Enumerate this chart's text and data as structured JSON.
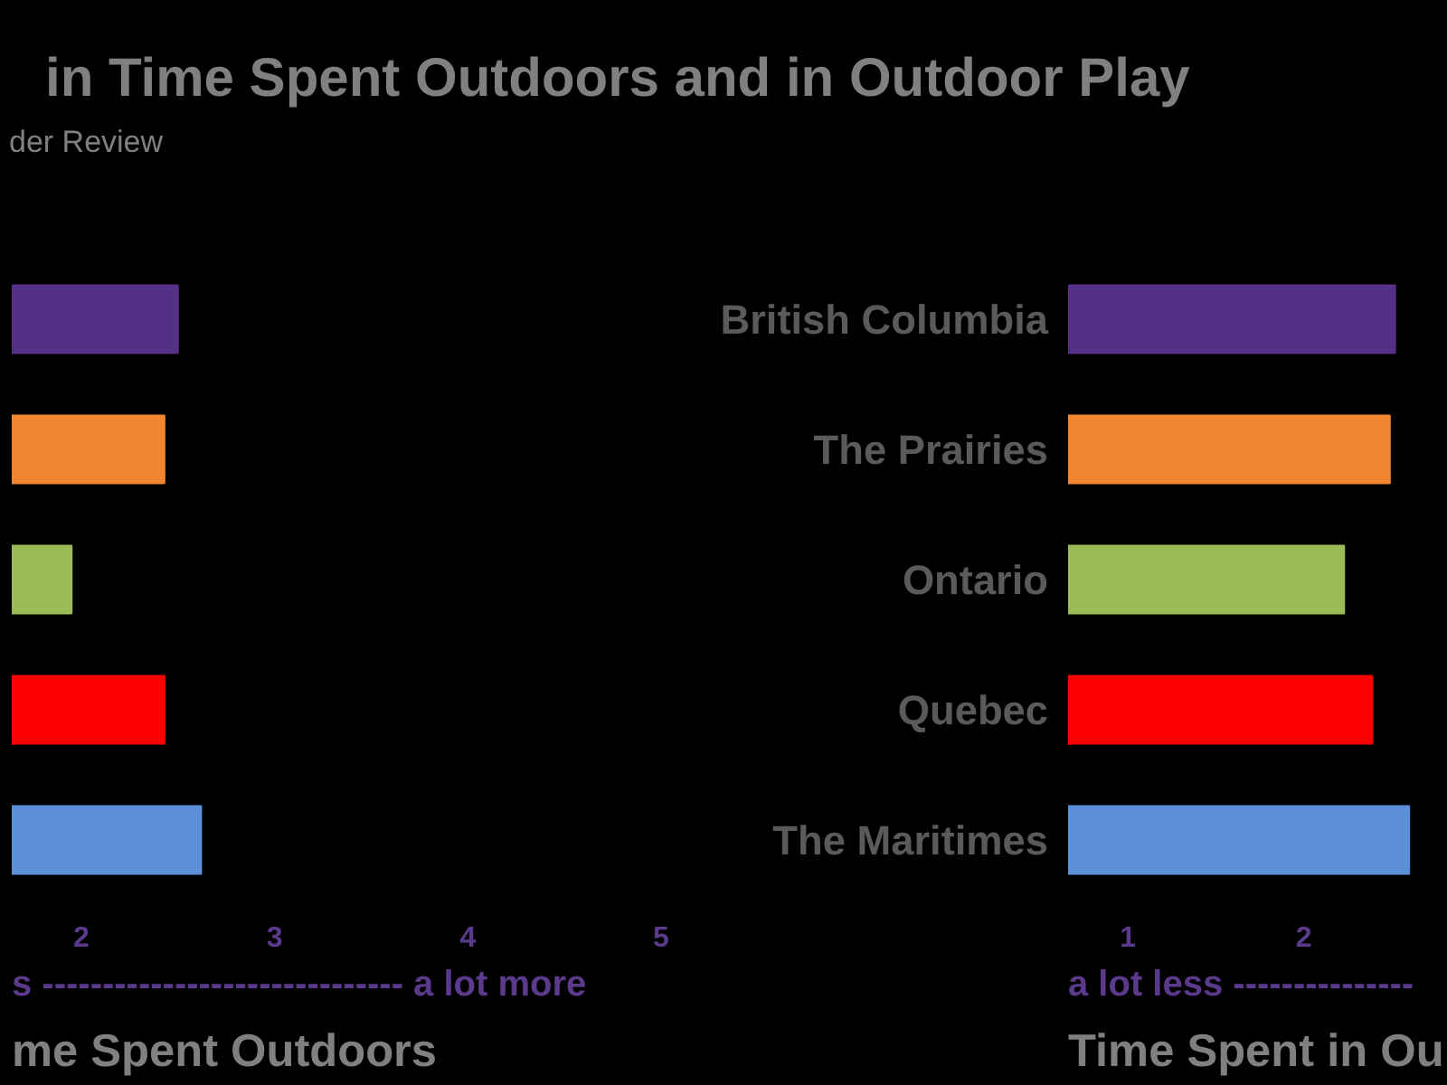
{
  "chart_data": [
    {
      "type": "bar",
      "orientation": "horizontal",
      "title": "in Time Spent Outdoors and in Outdoor Play",
      "subtitle": "der Review",
      "categories": [
        null,
        null,
        null,
        null,
        null
      ],
      "values": [
        2.5,
        2.43,
        1.95,
        2.43,
        2.62
      ],
      "colors": [
        "#553087",
        "#f28530",
        "#9bbb59",
        "#ff0000",
        "#5b8fd8"
      ],
      "xlim": [
        1.64,
        5
      ],
      "xticks": [
        2,
        3,
        4,
        5
      ],
      "tick_labels": "x",
      "xlabel": "me Spent Outdoors",
      "annotations": [
        "s ------------------------------ a lot more"
      ]
    },
    {
      "type": "bar",
      "orientation": "horizontal",
      "categories": [
        "British Columbia",
        "The Prairies",
        "Ontario",
        "Quebec",
        "The Maritimes"
      ],
      "values": [
        2.52,
        2.49,
        2.23,
        2.39,
        2.6
      ],
      "colors": [
        "#553087",
        "#f28530",
        "#9bbb59",
        "#ff0000",
        "#5b8fd8"
      ],
      "xlim": [
        0.66,
        2.82
      ],
      "xticks": [
        1,
        2
      ],
      "xlabel": "Time Spent in Ou",
      "annotations": [
        "a lot less ---------------"
      ]
    }
  ]
}
